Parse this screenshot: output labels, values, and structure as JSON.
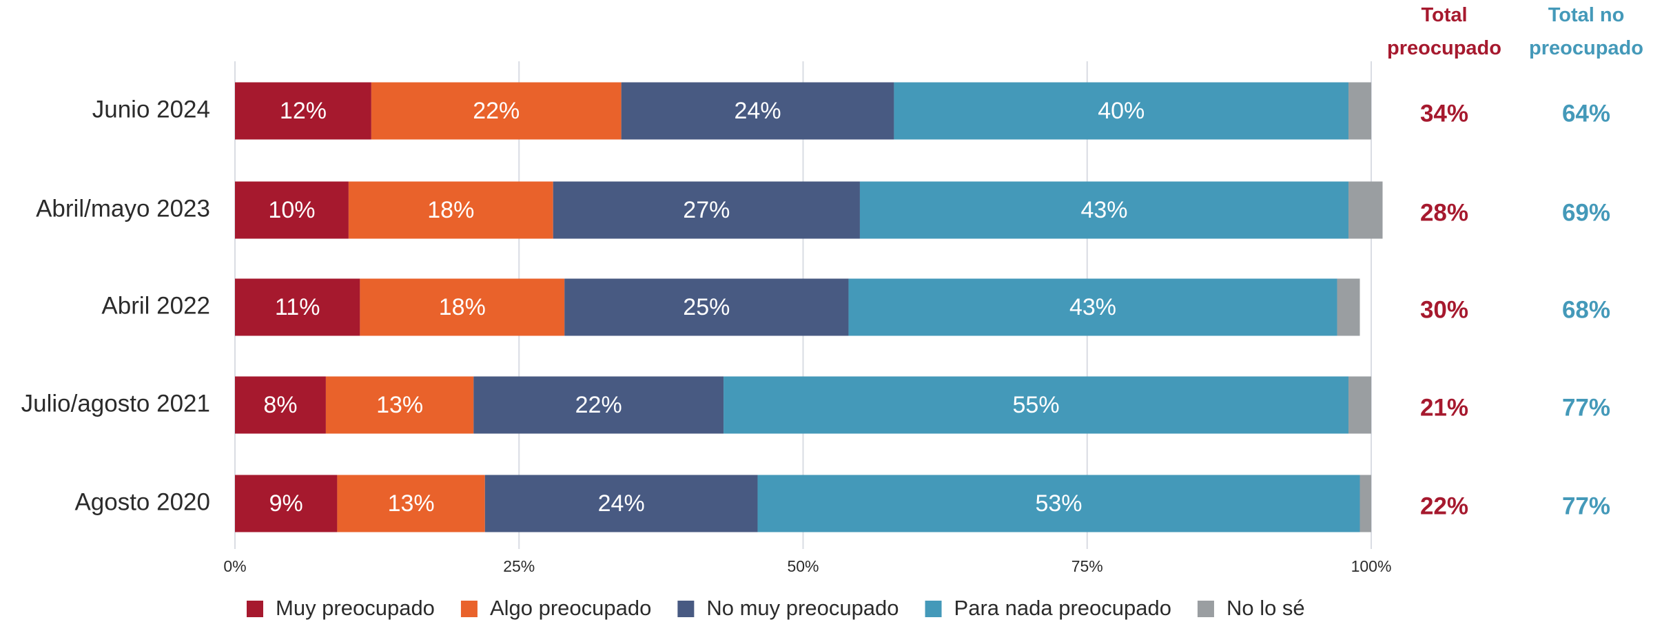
{
  "chart_data": {
    "type": "stacked_bar_horizontal",
    "categories": [
      "Junio 2024",
      "Abril/mayo 2023",
      "Abril 2022",
      "Julio/agosto 2021",
      "Agosto 2020"
    ],
    "series": [
      {
        "name": "Muy preocupado",
        "color": "#a6192e",
        "values": [
          12,
          10,
          11,
          8,
          9
        ],
        "value_labels": [
          "12%",
          "10%",
          "11%",
          "8%",
          "9%"
        ]
      },
      {
        "name": "Algo preocupado",
        "color": "#e9622b",
        "values": [
          22,
          18,
          18,
          13,
          13
        ],
        "value_labels": [
          "22%",
          "18%",
          "18%",
          "13%",
          "13%"
        ]
      },
      {
        "name": "No muy preocupado",
        "color": "#485a82",
        "values": [
          24,
          27,
          25,
          22,
          24
        ],
        "value_labels": [
          "24%",
          "27%",
          "25%",
          "22%",
          "24%"
        ]
      },
      {
        "name": "Para nada preocupado",
        "color": "#4499b9",
        "values": [
          40,
          43,
          43,
          55,
          53
        ],
        "value_labels": [
          "40%",
          "43%",
          "43%",
          "55%",
          "53%"
        ]
      },
      {
        "name": "No lo sé",
        "color": "#9a9ea1",
        "values": [
          2,
          3,
          2,
          2,
          1
        ]
      }
    ],
    "totals": [
      {
        "name": "Total preocupado",
        "color": "#a6192e",
        "values": [
          34,
          28,
          30,
          21,
          22
        ],
        "value_labels": [
          "34%",
          "28%",
          "30%",
          "21%",
          "22%"
        ]
      },
      {
        "name": "Total no preocupado",
        "color": "#4499b9",
        "values": [
          64,
          69,
          68,
          77,
          77
        ],
        "value_labels": [
          "64%",
          "69%",
          "68%",
          "77%",
          "77%"
        ]
      }
    ],
    "xlim": [
      0,
      100
    ],
    "xticks": [
      {
        "value": 0,
        "label": "0%"
      },
      {
        "value": 25,
        "label": "25%"
      },
      {
        "value": 50,
        "label": "50%"
      },
      {
        "value": 75,
        "label": "75%"
      },
      {
        "value": 100,
        "label": "100%"
      }
    ],
    "grid": true,
    "legend": "bottom"
  }
}
